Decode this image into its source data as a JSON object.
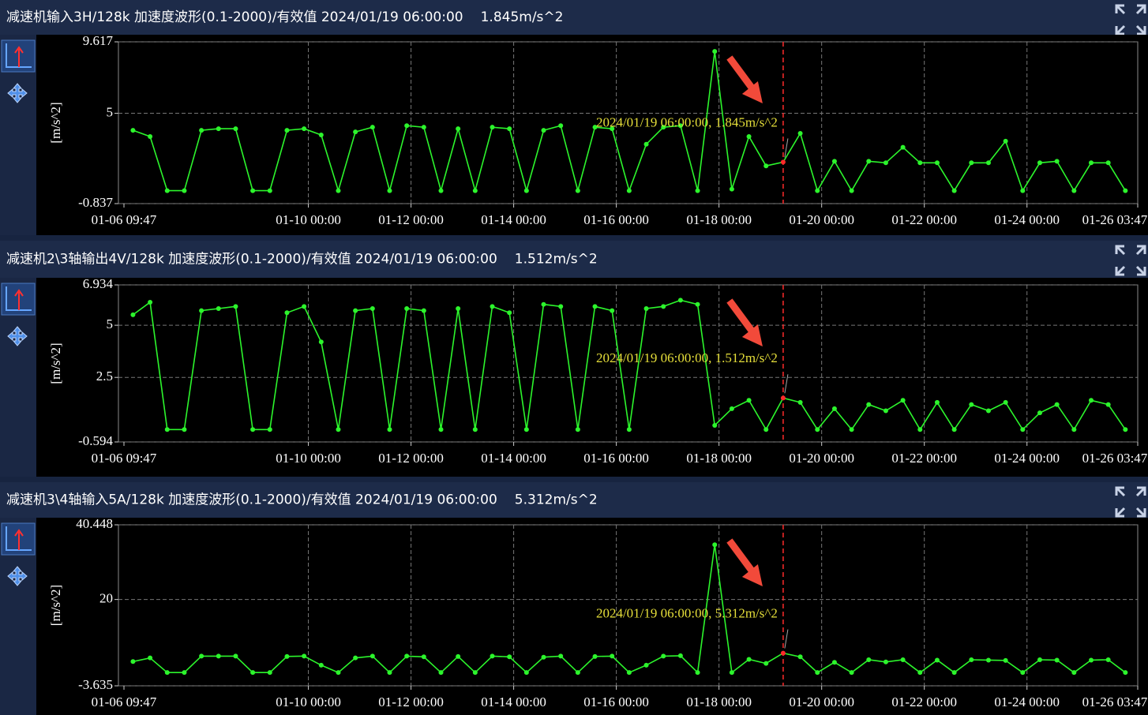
{
  "chart_data": [
    {
      "type": "line",
      "title": "减速机输入3H/128k 加速度波形(0.1-2000)/有效值 2024/01/19 06:00:00",
      "readout": "1.845m/s^2",
      "y_label": "[m/s^2]",
      "x": [
        "01-06 14:00",
        "01-06 22:00",
        "01-07 06:00",
        "01-07 14:00",
        "01-07 22:00",
        "01-08 06:00",
        "01-08 14:00",
        "01-08 22:00",
        "01-09 06:00",
        "01-09 14:00",
        "01-09 22:00",
        "01-10 06:00",
        "01-10 14:00",
        "01-10 22:00",
        "01-11 06:00",
        "01-11 14:00",
        "01-11 22:00",
        "01-12 06:00",
        "01-12 14:00",
        "01-12 22:00",
        "01-13 06:00",
        "01-13 14:00",
        "01-13 22:00",
        "01-14 06:00",
        "01-14 14:00",
        "01-14 22:00",
        "01-15 06:00",
        "01-15 14:00",
        "01-15 22:00",
        "01-16 06:00",
        "01-16 14:00",
        "01-16 22:00",
        "01-17 06:00",
        "01-17 14:00",
        "01-17 22:00",
        "01-18 06:00",
        "01-18 14:00",
        "01-18 22:00",
        "01-19 06:00",
        "01-19 14:00",
        "01-19 22:00",
        "01-20 06:00",
        "01-20 14:00",
        "01-20 22:00",
        "01-21 06:00",
        "01-21 14:00",
        "01-21 22:00",
        "01-22 06:00",
        "01-22 14:00",
        "01-22 22:00",
        "01-23 06:00",
        "01-23 14:00",
        "01-23 22:00",
        "01-24 06:00",
        "01-24 14:00",
        "01-24 22:00",
        "01-25 06:00",
        "01-25 14:00",
        "01-25 22:00"
      ],
      "series": [
        {
          "color": "#2cf52c",
          "values": [
            3.9,
            3.5,
            0,
            0,
            3.9,
            4.0,
            4.0,
            0,
            0,
            3.9,
            4.0,
            3.6,
            0,
            3.8,
            4.1,
            0,
            4.2,
            4.1,
            0,
            4.0,
            0,
            4.1,
            4.0,
            0,
            3.9,
            4.2,
            0,
            4.1,
            4.0,
            0,
            3.0,
            4.1,
            4.2,
            0,
            9.0,
            0.1,
            3.5,
            1.6,
            1.845,
            3.7,
            0,
            1.9,
            0,
            1.9,
            1.8,
            2.8,
            1.8,
            1.8,
            0,
            1.8,
            1.8,
            3.2,
            0,
            1.8,
            1.9,
            0,
            1.8,
            1.8,
            0
          ]
        }
      ],
      "xlim": [
        "01-06 09:47",
        "01-26 03:47"
      ],
      "xticks": [
        "01-06 09:47",
        "01-10 00:00",
        "01-12 00:00",
        "01-14 00:00",
        "01-16 00:00",
        "01-18 00:00",
        "01-20 00:00",
        "01-22 00:00",
        "01-24 00:00",
        "01-26 03:47"
      ],
      "ylim": [
        -0.837,
        9.617
      ],
      "yticks": [
        9.617,
        5,
        -0.837
      ],
      "grid": true,
      "cursor_x": "01-19 06:00",
      "cursor_color": "#ff2a2a",
      "annotation": "2024/01/19 06:00:00, 1.845m/s^2"
    },
    {
      "type": "line",
      "title": "减速机2\\3轴输出4V/128k 加速度波形(0.1-2000)/有效值 2024/01/19 06:00:00",
      "readout": "1.512m/s^2",
      "y_label": "[m/s^2]",
      "x": [
        "01-06 14:00",
        "01-06 22:00",
        "01-07 06:00",
        "01-07 14:00",
        "01-07 22:00",
        "01-08 06:00",
        "01-08 14:00",
        "01-08 22:00",
        "01-09 06:00",
        "01-09 14:00",
        "01-09 22:00",
        "01-10 06:00",
        "01-10 14:00",
        "01-10 22:00",
        "01-11 06:00",
        "01-11 14:00",
        "01-11 22:00",
        "01-12 06:00",
        "01-12 14:00",
        "01-12 22:00",
        "01-13 06:00",
        "01-13 14:00",
        "01-13 22:00",
        "01-14 06:00",
        "01-14 14:00",
        "01-14 22:00",
        "01-15 06:00",
        "01-15 14:00",
        "01-15 22:00",
        "01-16 06:00",
        "01-16 14:00",
        "01-16 22:00",
        "01-17 06:00",
        "01-17 14:00",
        "01-17 22:00",
        "01-18 06:00",
        "01-18 14:00",
        "01-18 22:00",
        "01-19 06:00",
        "01-19 14:00",
        "01-19 22:00",
        "01-20 06:00",
        "01-20 14:00",
        "01-20 22:00",
        "01-21 06:00",
        "01-21 14:00",
        "01-21 22:00",
        "01-22 06:00",
        "01-22 14:00",
        "01-22 22:00",
        "01-23 06:00",
        "01-23 14:00",
        "01-23 22:00",
        "01-24 06:00",
        "01-24 14:00",
        "01-24 22:00",
        "01-25 06:00",
        "01-25 14:00",
        "01-25 22:00"
      ],
      "series": [
        {
          "color": "#2cf52c",
          "values": [
            5.5,
            6.1,
            0,
            0,
            5.7,
            5.8,
            5.9,
            0,
            0,
            5.6,
            5.9,
            4.2,
            0,
            5.7,
            5.8,
            0,
            5.8,
            5.7,
            0,
            5.8,
            0,
            5.9,
            5.6,
            0,
            6.0,
            5.9,
            0,
            5.9,
            5.7,
            0,
            5.8,
            5.9,
            6.2,
            6.0,
            0.2,
            1.0,
            1.4,
            0,
            1.512,
            1.3,
            0,
            1.0,
            0,
            1.2,
            0.9,
            1.4,
            0,
            1.3,
            0,
            1.2,
            0.9,
            1.3,
            0,
            0.8,
            1.2,
            0,
            1.4,
            1.2,
            0
          ]
        }
      ],
      "xlim": [
        "01-06 09:47",
        "01-26 03:47"
      ],
      "xticks": [
        "01-06 09:47",
        "01-10 00:00",
        "01-12 00:00",
        "01-14 00:00",
        "01-16 00:00",
        "01-18 00:00",
        "01-20 00:00",
        "01-22 00:00",
        "01-24 00:00",
        "01-26 03:47"
      ],
      "ylim": [
        -0.594,
        6.934
      ],
      "yticks": [
        6.934,
        5,
        2.5,
        -0.594
      ],
      "grid": true,
      "cursor_x": "01-19 06:00",
      "cursor_color": "#ff2a2a",
      "annotation": "2024/01/19 06:00:00, 1.512m/s^2"
    },
    {
      "type": "line",
      "title": "减速机3\\4轴输入5A/128k 加速度波形(0.1-2000)/有效值 2024/01/19 06:00:00",
      "readout": "5.312m/s^2",
      "y_label": "[m/s^2]",
      "x": [
        "01-06 14:00",
        "01-06 22:00",
        "01-07 06:00",
        "01-07 14:00",
        "01-07 22:00",
        "01-08 06:00",
        "01-08 14:00",
        "01-08 22:00",
        "01-09 06:00",
        "01-09 14:00",
        "01-09 22:00",
        "01-10 06:00",
        "01-10 14:00",
        "01-10 22:00",
        "01-11 06:00",
        "01-11 14:00",
        "01-11 22:00",
        "01-12 06:00",
        "01-12 14:00",
        "01-12 22:00",
        "01-13 06:00",
        "01-13 14:00",
        "01-13 22:00",
        "01-14 06:00",
        "01-14 14:00",
        "01-14 22:00",
        "01-15 06:00",
        "01-15 14:00",
        "01-15 22:00",
        "01-16 06:00",
        "01-16 14:00",
        "01-16 22:00",
        "01-17 06:00",
        "01-17 14:00",
        "01-17 22:00",
        "01-18 06:00",
        "01-18 14:00",
        "01-18 22:00",
        "01-19 06:00",
        "01-19 14:00",
        "01-19 22:00",
        "01-20 06:00",
        "01-20 14:00",
        "01-20 22:00",
        "01-21 06:00",
        "01-21 14:00",
        "01-21 22:00",
        "01-22 06:00",
        "01-22 14:00",
        "01-22 22:00",
        "01-23 06:00",
        "01-23 14:00",
        "01-23 22:00",
        "01-24 06:00",
        "01-24 14:00",
        "01-24 22:00",
        "01-25 06:00",
        "01-25 14:00",
        "01-25 22:00"
      ],
      "series": [
        {
          "color": "#2cf52c",
          "values": [
            3,
            4,
            0,
            0,
            4.5,
            4.5,
            4.5,
            0,
            0,
            4.4,
            4.5,
            2.0,
            0,
            4.0,
            4.5,
            0,
            4.5,
            4.3,
            0,
            4.4,
            0,
            4.5,
            4.3,
            0,
            4.2,
            4.5,
            0,
            4.4,
            4.5,
            0,
            2.0,
            4.5,
            4.6,
            0,
            35.0,
            0,
            3.6,
            2.5,
            5.312,
            4.3,
            0,
            2.8,
            0,
            3.5,
            2.9,
            3.5,
            0,
            3.4,
            0,
            3.5,
            3.4,
            3.3,
            0,
            3.5,
            3.4,
            0,
            3.4,
            3.5,
            0
          ]
        }
      ],
      "xlim": [
        "01-06 09:47",
        "01-26 03:47"
      ],
      "xticks": [
        "01-06 09:47",
        "01-10 00:00",
        "01-12 00:00",
        "01-14 00:00",
        "01-16 00:00",
        "01-18 00:00",
        "01-20 00:00",
        "01-22 00:00",
        "01-24 00:00",
        "01-26 03:47"
      ],
      "ylim": [
        -3.635,
        40.448
      ],
      "yticks": [
        40.448,
        20,
        -3.635
      ],
      "grid": true,
      "cursor_x": "01-19 06:00",
      "cursor_color": "#ff2a2a",
      "annotation": "2024/01/19 06:00:00, 5.312m/s^2"
    }
  ]
}
